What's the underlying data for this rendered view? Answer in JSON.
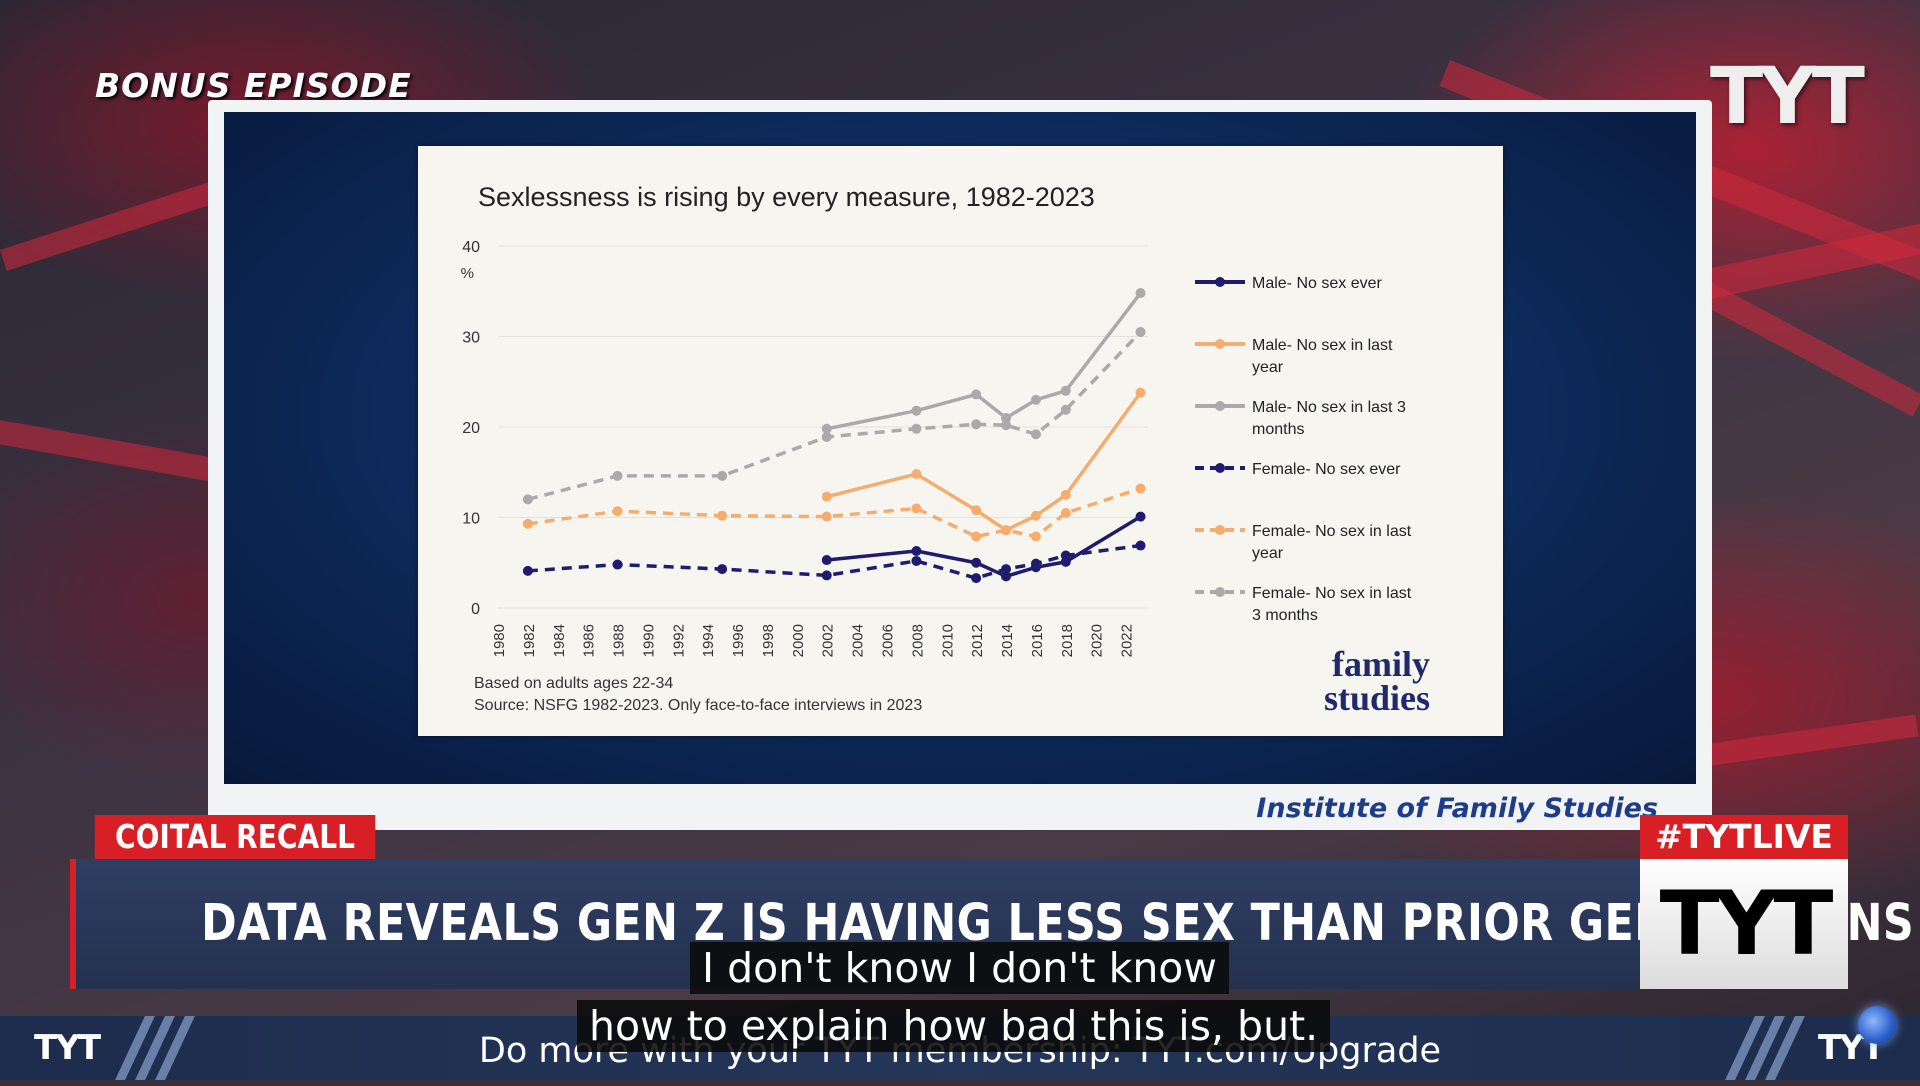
{
  "overlay": {
    "bonus_label": "BONUS EPISODE",
    "logo_text": "TYT"
  },
  "slide": {
    "source_credit": "Institute of Family Studies"
  },
  "chart_data": {
    "type": "line",
    "title": "Sexlessness is rising by every measure, 1982-2023",
    "ylabel": "%",
    "ylim": [
      0,
      40
    ],
    "yticks": [
      0,
      10,
      20,
      30,
      40
    ],
    "xlim": [
      1980,
      2023.5
    ],
    "xticks": [
      1980,
      1982,
      1984,
      1986,
      1988,
      1990,
      1992,
      1994,
      1996,
      1998,
      2000,
      2002,
      2004,
      2006,
      2008,
      2010,
      2012,
      2014,
      2016,
      2018,
      2020,
      2022
    ],
    "grid": true,
    "legend_position": "right",
    "series": [
      {
        "name": "Male-  No sex ever",
        "color": "#1f1b6e",
        "dashed": false,
        "points": [
          [
            2002,
            5.3
          ],
          [
            2008,
            6.3
          ],
          [
            2012,
            5.0
          ],
          [
            2014,
            3.5
          ],
          [
            2016,
            4.5
          ],
          [
            2018,
            5.1
          ],
          [
            2023,
            10.1
          ]
        ]
      },
      {
        "name": "Male-  No sex in last year",
        "color": "#f5ad6f",
        "dashed": false,
        "points": [
          [
            2002,
            12.3
          ],
          [
            2008,
            14.8
          ],
          [
            2012,
            10.8
          ],
          [
            2014,
            8.6
          ],
          [
            2016,
            10.2
          ],
          [
            2018,
            12.5
          ],
          [
            2023,
            23.8
          ]
        ]
      },
      {
        "name": "Male-  No sex in last 3 months",
        "color": "#aaaaaa",
        "dashed": false,
        "points": [
          [
            2002,
            19.8
          ],
          [
            2008,
            21.8
          ],
          [
            2012,
            23.6
          ],
          [
            2014,
            21.0
          ],
          [
            2016,
            23.0
          ],
          [
            2018,
            24.0
          ],
          [
            2023,
            34.8
          ]
        ]
      },
      {
        "name": "Female-  No sex ever",
        "color": "#1f1b6e",
        "dashed": true,
        "points": [
          [
            1982,
            4.1
          ],
          [
            1988,
            4.8
          ],
          [
            1995,
            4.3
          ],
          [
            2002,
            3.6
          ],
          [
            2008,
            5.2
          ],
          [
            2012,
            3.3
          ],
          [
            2014,
            4.3
          ],
          [
            2016,
            4.9
          ],
          [
            2018,
            5.8
          ],
          [
            2023,
            6.9
          ]
        ]
      },
      {
        "name": "Female-  No sex in last year",
        "color": "#f5ad6f",
        "dashed": true,
        "points": [
          [
            1982,
            9.3
          ],
          [
            1988,
            10.7
          ],
          [
            1995,
            10.2
          ],
          [
            2002,
            10.1
          ],
          [
            2008,
            11.0
          ],
          [
            2012,
            7.9
          ],
          [
            2014,
            8.6
          ],
          [
            2016,
            7.9
          ],
          [
            2018,
            10.5
          ],
          [
            2023,
            13.2
          ]
        ]
      },
      {
        "name": "Female-  No sex in last 3 months",
        "color": "#aaaaaa",
        "dashed": true,
        "points": [
          [
            1982,
            12.0
          ],
          [
            1988,
            14.6
          ],
          [
            1995,
            14.6
          ],
          [
            2002,
            18.9
          ],
          [
            2008,
            19.8
          ],
          [
            2012,
            20.3
          ],
          [
            2014,
            20.2
          ],
          [
            2016,
            19.2
          ],
          [
            2018,
            21.9
          ],
          [
            2023,
            30.5
          ]
        ]
      }
    ],
    "notes": [
      "Based on adults ages 22-34",
      "Source: NSFG 1982-2023. Only face-to-face interviews in 2023"
    ],
    "brand": [
      "family",
      "studies"
    ]
  },
  "lower_third": {
    "tag": "COITAL RECALL",
    "headline": "DATA REVEALS GEN Z IS HAVING LESS SEX THAN PRIOR GENERATIONS",
    "hashtag": "#TYTLIVE",
    "logo": "TYT"
  },
  "captions": {
    "line1": "I don't know I don't know",
    "line2": "how to explain how bad this is, but."
  },
  "ticker": {
    "text": "Do more with your TYT membership: TYT.com/Upgrade",
    "logo_left": "TYT",
    "logo_right": "TYT"
  }
}
